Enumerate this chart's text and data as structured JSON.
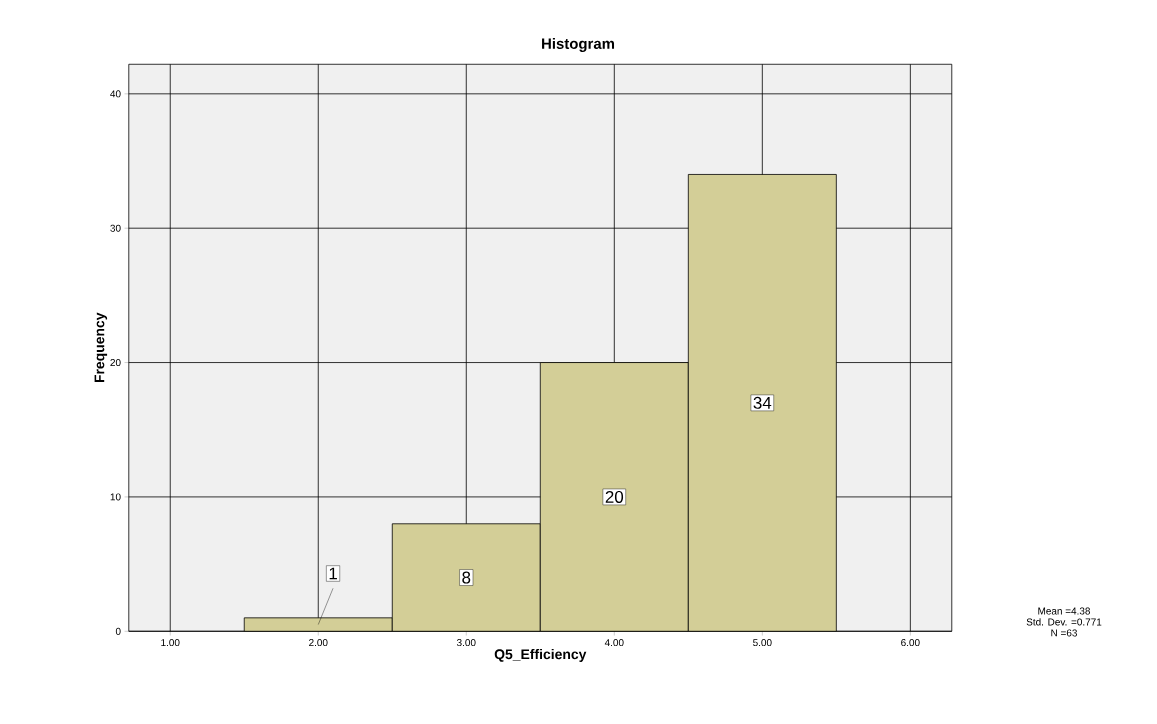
{
  "chart_data": {
    "type": "histogram",
    "title": "Histogram",
    "xlabel": "Q5_Efficiency",
    "ylabel": "Frequency",
    "bins": [
      1.5,
      2.5,
      3.5,
      4.5,
      5.5
    ],
    "values": [
      1,
      8,
      20,
      34
    ],
    "color": "#d3ce97",
    "xlim": [
      0.72,
      6.28
    ],
    "ylim": [
      0,
      42.2
    ],
    "xticks": [
      {
        "value": 1,
        "label": "1.00"
      },
      {
        "value": 2,
        "label": "2.00"
      },
      {
        "value": 3,
        "label": "3.00"
      },
      {
        "value": 4,
        "label": "4.00"
      },
      {
        "value": 5,
        "label": "5.00"
      },
      {
        "value": 6,
        "label": "6.00"
      }
    ],
    "yticks": [
      0,
      10,
      20,
      30,
      40
    ],
    "grid": true,
    "data_labels": true,
    "annotations": [
      "Mean =4.38",
      "Std. Dev. =0.771",
      "N =63"
    ]
  }
}
